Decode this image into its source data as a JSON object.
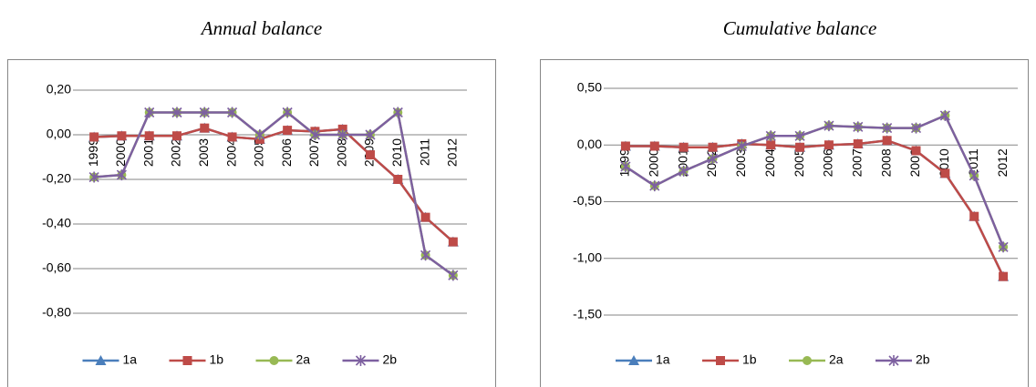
{
  "chart_data": [
    {
      "type": "line",
      "title": "Annual balance",
      "categories": [
        "1999",
        "2000",
        "2001",
        "2002",
        "2003",
        "2004",
        "2005",
        "2006",
        "2007",
        "2008",
        "2009",
        "2010",
        "2011",
        "2012"
      ],
      "ylim": [
        -0.8,
        0.2
      ],
      "yticks": [
        {
          "value": 0.2,
          "label": "0,20"
        },
        {
          "value": 0,
          "label": "0,00"
        },
        {
          "value": -0.2,
          "label": "-0,20"
        },
        {
          "value": -0.4,
          "label": "-0,40"
        },
        {
          "value": -0.6,
          "label": "-0,60"
        },
        {
          "value": -0.8,
          "label": "-0,80"
        }
      ],
      "grid": true,
      "legend": "bottom",
      "series": [
        {
          "name": "1a",
          "color": "#4a7ebb",
          "marker": "triangle",
          "values": [
            -0.01,
            -0.005,
            -0.005,
            -0.005,
            0.03,
            -0.01,
            -0.02,
            0.02,
            0.015,
            0.025,
            -0.09,
            -0.2,
            -0.37,
            -0.48
          ]
        },
        {
          "name": "1b",
          "color": "#be4b48",
          "marker": "square",
          "values": [
            -0.01,
            -0.005,
            -0.005,
            -0.005,
            0.03,
            -0.01,
            -0.02,
            0.02,
            0.015,
            0.025,
            -0.09,
            -0.2,
            -0.37,
            -0.48
          ]
        },
        {
          "name": "2a",
          "color": "#98b954",
          "marker": "circle",
          "values": [
            -0.19,
            -0.18,
            0.1,
            0.1,
            0.1,
            0.1,
            0,
            0.1,
            0,
            0,
            0,
            0.1,
            -0.54,
            -0.63
          ]
        },
        {
          "name": "2b",
          "color": "#7d60a0",
          "marker": "star",
          "values": [
            -0.19,
            -0.18,
            0.1,
            0.1,
            0.1,
            0.1,
            0,
            0.1,
            0,
            0,
            0,
            0.1,
            -0.54,
            -0.63
          ]
        }
      ]
    },
    {
      "type": "line",
      "title": "Cumulative balance",
      "categories": [
        "1999",
        "2000",
        "2001",
        "2002",
        "2003",
        "2004",
        "2005",
        "2006",
        "2007",
        "2008",
        "2009",
        "2010",
        "2011",
        "2012"
      ],
      "ylim": [
        -1.5,
        0.5
      ],
      "yticks": [
        {
          "value": 0.5,
          "label": "0,50"
        },
        {
          "value": 0,
          "label": "0,00"
        },
        {
          "value": -0.5,
          "label": "-0,50"
        },
        {
          "value": -1,
          "label": "-1,00"
        },
        {
          "value": -1.5,
          "label": "-1,50"
        }
      ],
      "grid": true,
      "legend": "bottom",
      "series": [
        {
          "name": "1a",
          "color": "#4a7ebb",
          "marker": "triangle",
          "values": [
            -0.01,
            -0.01,
            -0.02,
            -0.02,
            0.01,
            0,
            -0.02,
            0,
            0.01,
            0.04,
            -0.05,
            -0.25,
            -0.63,
            -1.16
          ]
        },
        {
          "name": "1b",
          "color": "#be4b48",
          "marker": "square",
          "values": [
            -0.01,
            -0.01,
            -0.02,
            -0.02,
            0.01,
            0,
            -0.02,
            0,
            0.01,
            0.04,
            -0.05,
            -0.25,
            -0.63,
            -1.16
          ]
        },
        {
          "name": "2a",
          "color": "#98b954",
          "marker": "circle",
          "values": [
            -0.19,
            -0.36,
            -0.23,
            -0.12,
            -0.01,
            0.08,
            0.08,
            0.17,
            0.16,
            0.15,
            0.15,
            0.26,
            -0.27,
            -0.9
          ]
        },
        {
          "name": "2b",
          "color": "#7d60a0",
          "marker": "star",
          "values": [
            -0.19,
            -0.36,
            -0.23,
            -0.12,
            -0.01,
            0.08,
            0.08,
            0.17,
            0.16,
            0.15,
            0.15,
            0.26,
            -0.27,
            -0.9
          ]
        }
      ]
    }
  ]
}
